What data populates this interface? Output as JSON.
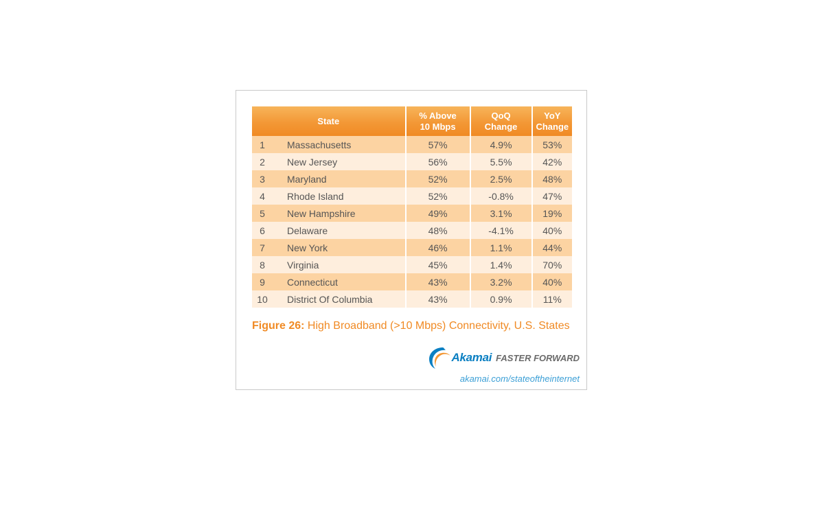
{
  "chart_data": {
    "type": "table",
    "columns": [
      "State",
      "% Above 10 Mbps",
      "QoQ Change",
      "YoY Change"
    ],
    "header_lines": {
      "state": [
        "State"
      ],
      "pct": [
        "% Above",
        "10 Mbps"
      ],
      "qoq": [
        "QoQ",
        "Change"
      ],
      "yoy": [
        "YoY",
        "Change"
      ]
    },
    "rows": [
      {
        "rank": "1",
        "state": "Massachusetts",
        "pct": "57%",
        "qoq": "4.9%",
        "yoy": "53%"
      },
      {
        "rank": "2",
        "state": "New Jersey",
        "pct": "56%",
        "qoq": "5.5%",
        "yoy": "42%"
      },
      {
        "rank": "3",
        "state": "Maryland",
        "pct": "52%",
        "qoq": "2.5%",
        "yoy": "48%"
      },
      {
        "rank": "4",
        "state": "Rhode Island",
        "pct": "52%",
        "qoq": "-0.8%",
        "yoy": "47%"
      },
      {
        "rank": "5",
        "state": "New Hampshire",
        "pct": "49%",
        "qoq": "3.1%",
        "yoy": "19%"
      },
      {
        "rank": "6",
        "state": "Delaware",
        "pct": "48%",
        "qoq": "-4.1%",
        "yoy": "40%"
      },
      {
        "rank": "7",
        "state": "New York",
        "pct": "46%",
        "qoq": "1.1%",
        "yoy": "44%"
      },
      {
        "rank": "8",
        "state": "Virginia",
        "pct": "45%",
        "qoq": "1.4%",
        "yoy": "70%"
      },
      {
        "rank": "9",
        "state": "Connecticut",
        "pct": "43%",
        "qoq": "3.2%",
        "yoy": "40%"
      },
      {
        "rank": "10",
        "state": "District Of Columbia",
        "pct": "43%",
        "qoq": "0.9%",
        "yoy": "11%"
      }
    ]
  },
  "caption": {
    "figure": "Figure 26:",
    "text": "High Broadband (>10 Mbps) Connectivity, U.S. States"
  },
  "branding": {
    "brand": "Akamai",
    "tagline": "FASTER FORWARD",
    "url": "akamai.com/stateoftheinternet",
    "logo_icon": "akamai-wave-icon",
    "brand_color": "#0a7fc2",
    "accent_color": "#f08a24"
  }
}
